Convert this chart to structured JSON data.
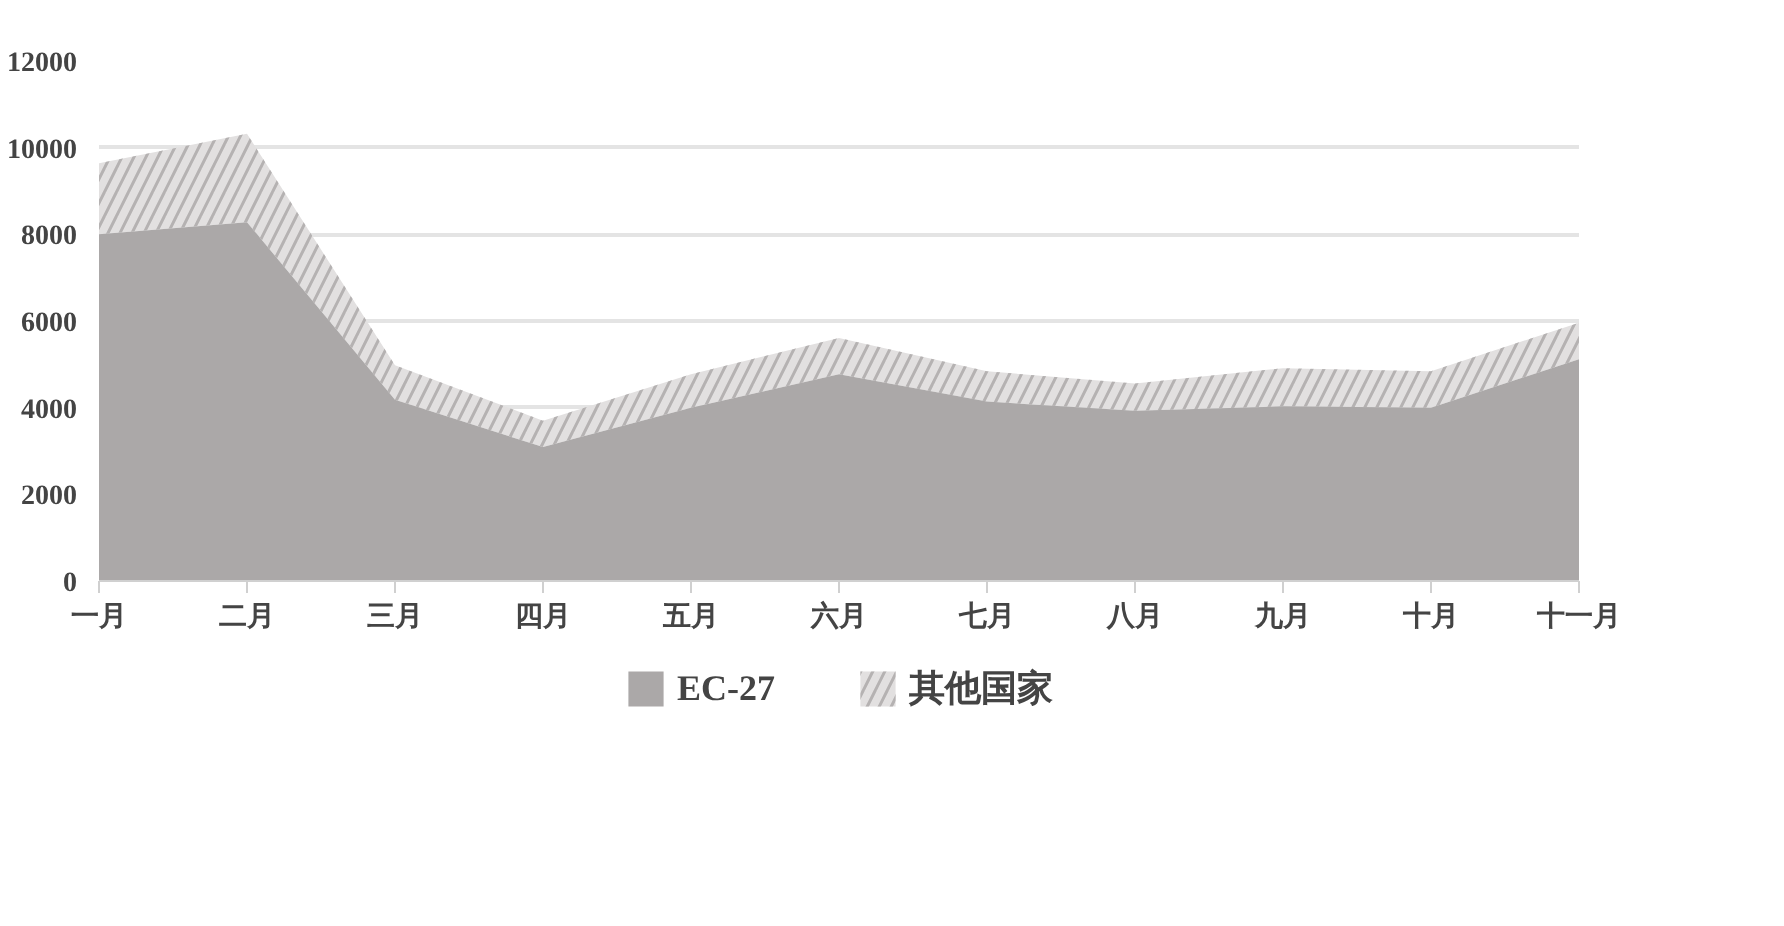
{
  "chart_data": {
    "type": "area",
    "stacked": true,
    "categories": [
      "一月",
      "二月",
      "三月",
      "四月",
      "五月",
      "六月",
      "七月",
      "八月",
      "九月",
      "十月",
      "十一月"
    ],
    "series": [
      {
        "name": "EC-27",
        "color": "#aba8a8",
        "values": [
          8000,
          8280,
          4180,
          3090,
          4000,
          4770,
          4140,
          3930,
          4030,
          4000,
          5120
        ]
      },
      {
        "name": "其他国家",
        "color": "#e2e0e0",
        "values": [
          1640,
          2040,
          800,
          610,
          770,
          840,
          700,
          630,
          880,
          840,
          840
        ]
      }
    ],
    "ylim": [
      0,
      12000
    ],
    "yticks": [
      0,
      2000,
      4000,
      6000,
      8000,
      10000,
      12000
    ],
    "grid": "y",
    "legend": "bottom"
  }
}
